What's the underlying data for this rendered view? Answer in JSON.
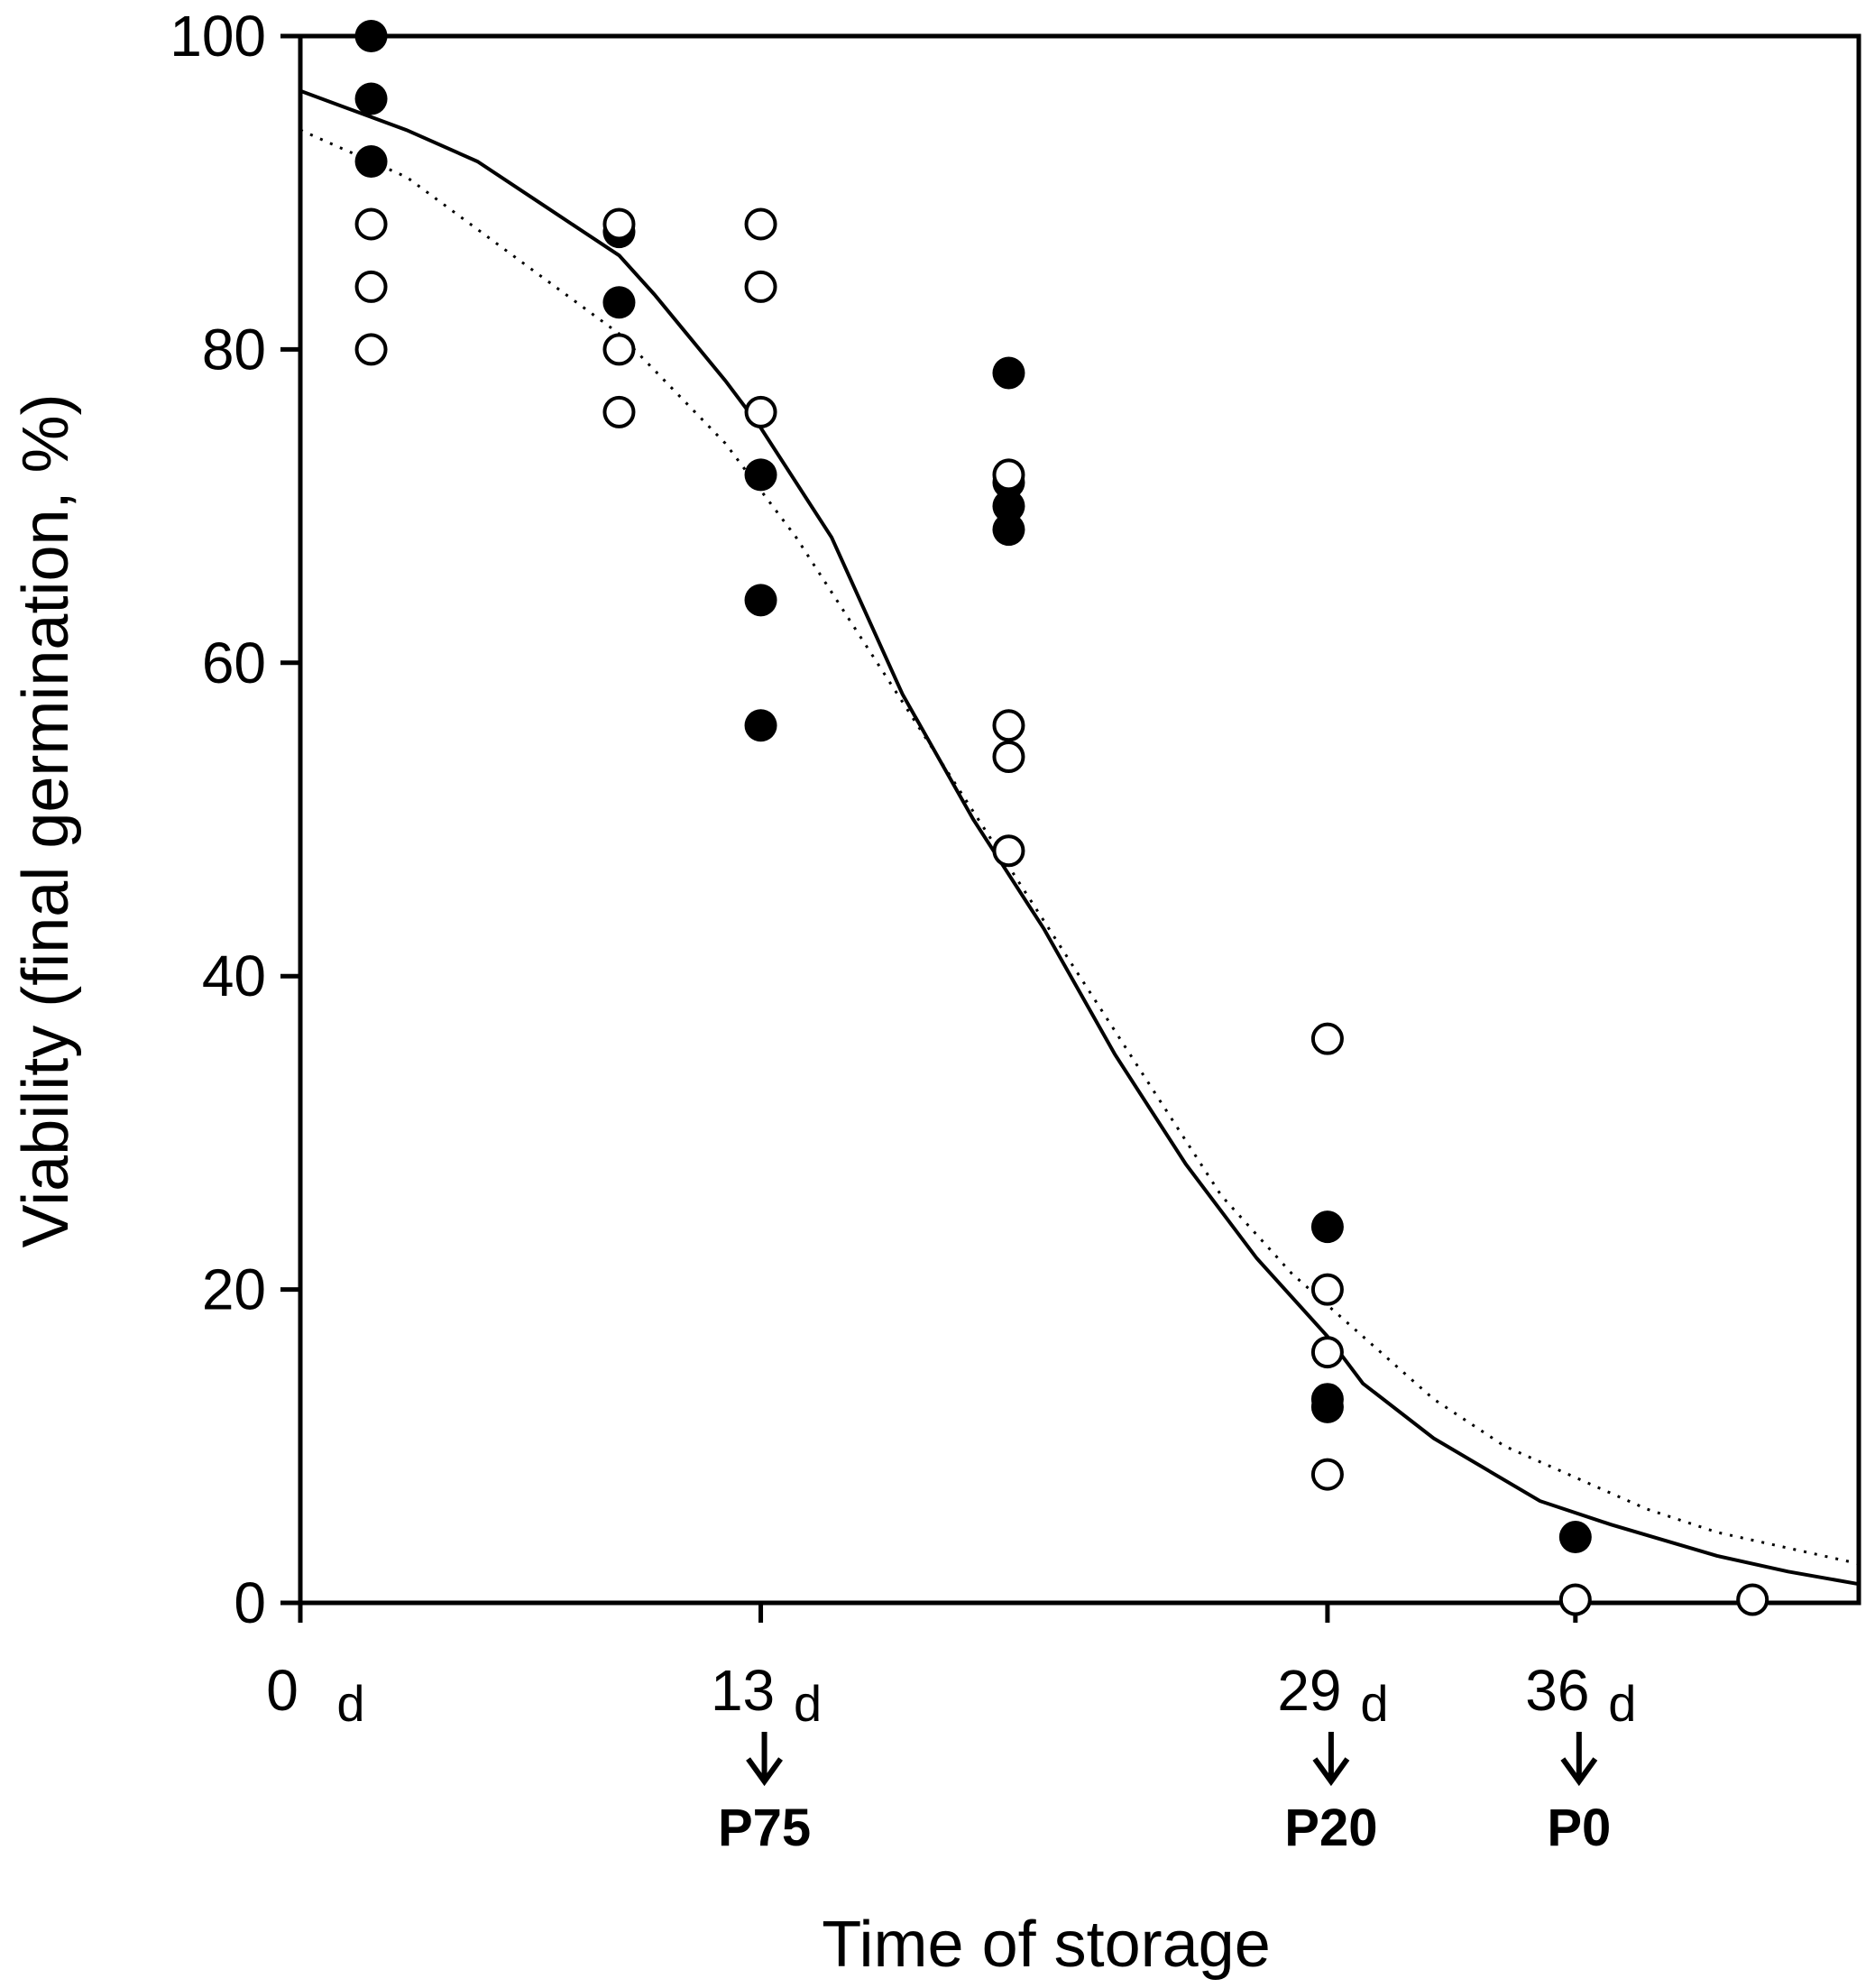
{
  "chart_data": {
    "type": "scatter",
    "title": "",
    "xlabel": "Time of storage",
    "ylabel": "Viability (final germination, %)",
    "xlim": [
      0,
      44
    ],
    "ylim": [
      0,
      100
    ],
    "y_ticks": [
      "0",
      "20",
      "40",
      "60",
      "80",
      "100"
    ],
    "x_ticks": [
      {
        "value": 0,
        "label": "0",
        "unit": "d"
      },
      {
        "value": 13,
        "label": "13",
        "unit": "d"
      },
      {
        "value": 29,
        "label": "29",
        "unit": "d"
      },
      {
        "value": 36,
        "label": "36",
        "unit": "d"
      }
    ],
    "markers": [
      {
        "x": 13,
        "label": "P75"
      },
      {
        "x": 29,
        "label": "P20"
      },
      {
        "x": 36,
        "label": "P0"
      }
    ],
    "grid": false,
    "series": [
      {
        "marker": "filled-circle",
        "points": [
          [
            2,
            100
          ],
          [
            2,
            96
          ],
          [
            2,
            92
          ],
          [
            9,
            87.5
          ],
          [
            9,
            83
          ],
          [
            13,
            72
          ],
          [
            13,
            64
          ],
          [
            13,
            56
          ],
          [
            20,
            78.5
          ],
          [
            20,
            71.5
          ],
          [
            20,
            70
          ],
          [
            20,
            68.5
          ],
          [
            29,
            24
          ],
          [
            29,
            13
          ],
          [
            29,
            12.5
          ],
          [
            36,
            4.2
          ]
        ]
      },
      {
        "marker": "open-circle",
        "points": [
          [
            2,
            88
          ],
          [
            2,
            84
          ],
          [
            2,
            80
          ],
          [
            9,
            88
          ],
          [
            9,
            80
          ],
          [
            9,
            76
          ],
          [
            13,
            88
          ],
          [
            13,
            84
          ],
          [
            13,
            76
          ],
          [
            20,
            72
          ],
          [
            20,
            56
          ],
          [
            20,
            54
          ],
          [
            20,
            48
          ],
          [
            29,
            36
          ],
          [
            29,
            20
          ],
          [
            29,
            16
          ],
          [
            29,
            8.2
          ],
          [
            36,
            0.2
          ],
          [
            41,
            0.2
          ]
        ]
      },
      {
        "line": "solid",
        "points": [
          [
            0,
            96.5
          ],
          [
            3,
            94
          ],
          [
            5,
            92
          ],
          [
            7,
            89
          ],
          [
            9,
            86
          ],
          [
            10,
            83.5
          ],
          [
            12,
            78
          ],
          [
            13,
            75
          ],
          [
            15,
            68
          ],
          [
            17,
            58
          ],
          [
            19,
            50
          ],
          [
            21,
            43
          ],
          [
            23,
            35
          ],
          [
            25,
            28
          ],
          [
            27,
            22
          ],
          [
            29,
            17
          ],
          [
            30,
            14
          ],
          [
            32,
            10.5
          ],
          [
            35,
            6.5
          ],
          [
            37,
            5
          ],
          [
            40,
            3
          ],
          [
            42,
            2
          ],
          [
            44,
            1.2
          ]
        ]
      },
      {
        "line": "dotted",
        "points": [
          [
            0,
            94
          ],
          [
            3,
            91
          ],
          [
            6,
            86
          ],
          [
            9,
            81
          ],
          [
            12,
            74
          ],
          [
            14,
            68
          ],
          [
            16,
            61
          ],
          [
            18,
            54
          ],
          [
            20,
            47
          ],
          [
            22,
            40
          ],
          [
            24,
            33
          ],
          [
            26,
            26
          ],
          [
            28,
            21
          ],
          [
            30,
            17
          ],
          [
            32,
            13
          ],
          [
            34,
            10
          ],
          [
            36,
            8
          ],
          [
            38,
            6
          ],
          [
            40,
            4.5
          ],
          [
            42,
            3.5
          ],
          [
            44,
            2.5
          ]
        ]
      }
    ]
  }
}
